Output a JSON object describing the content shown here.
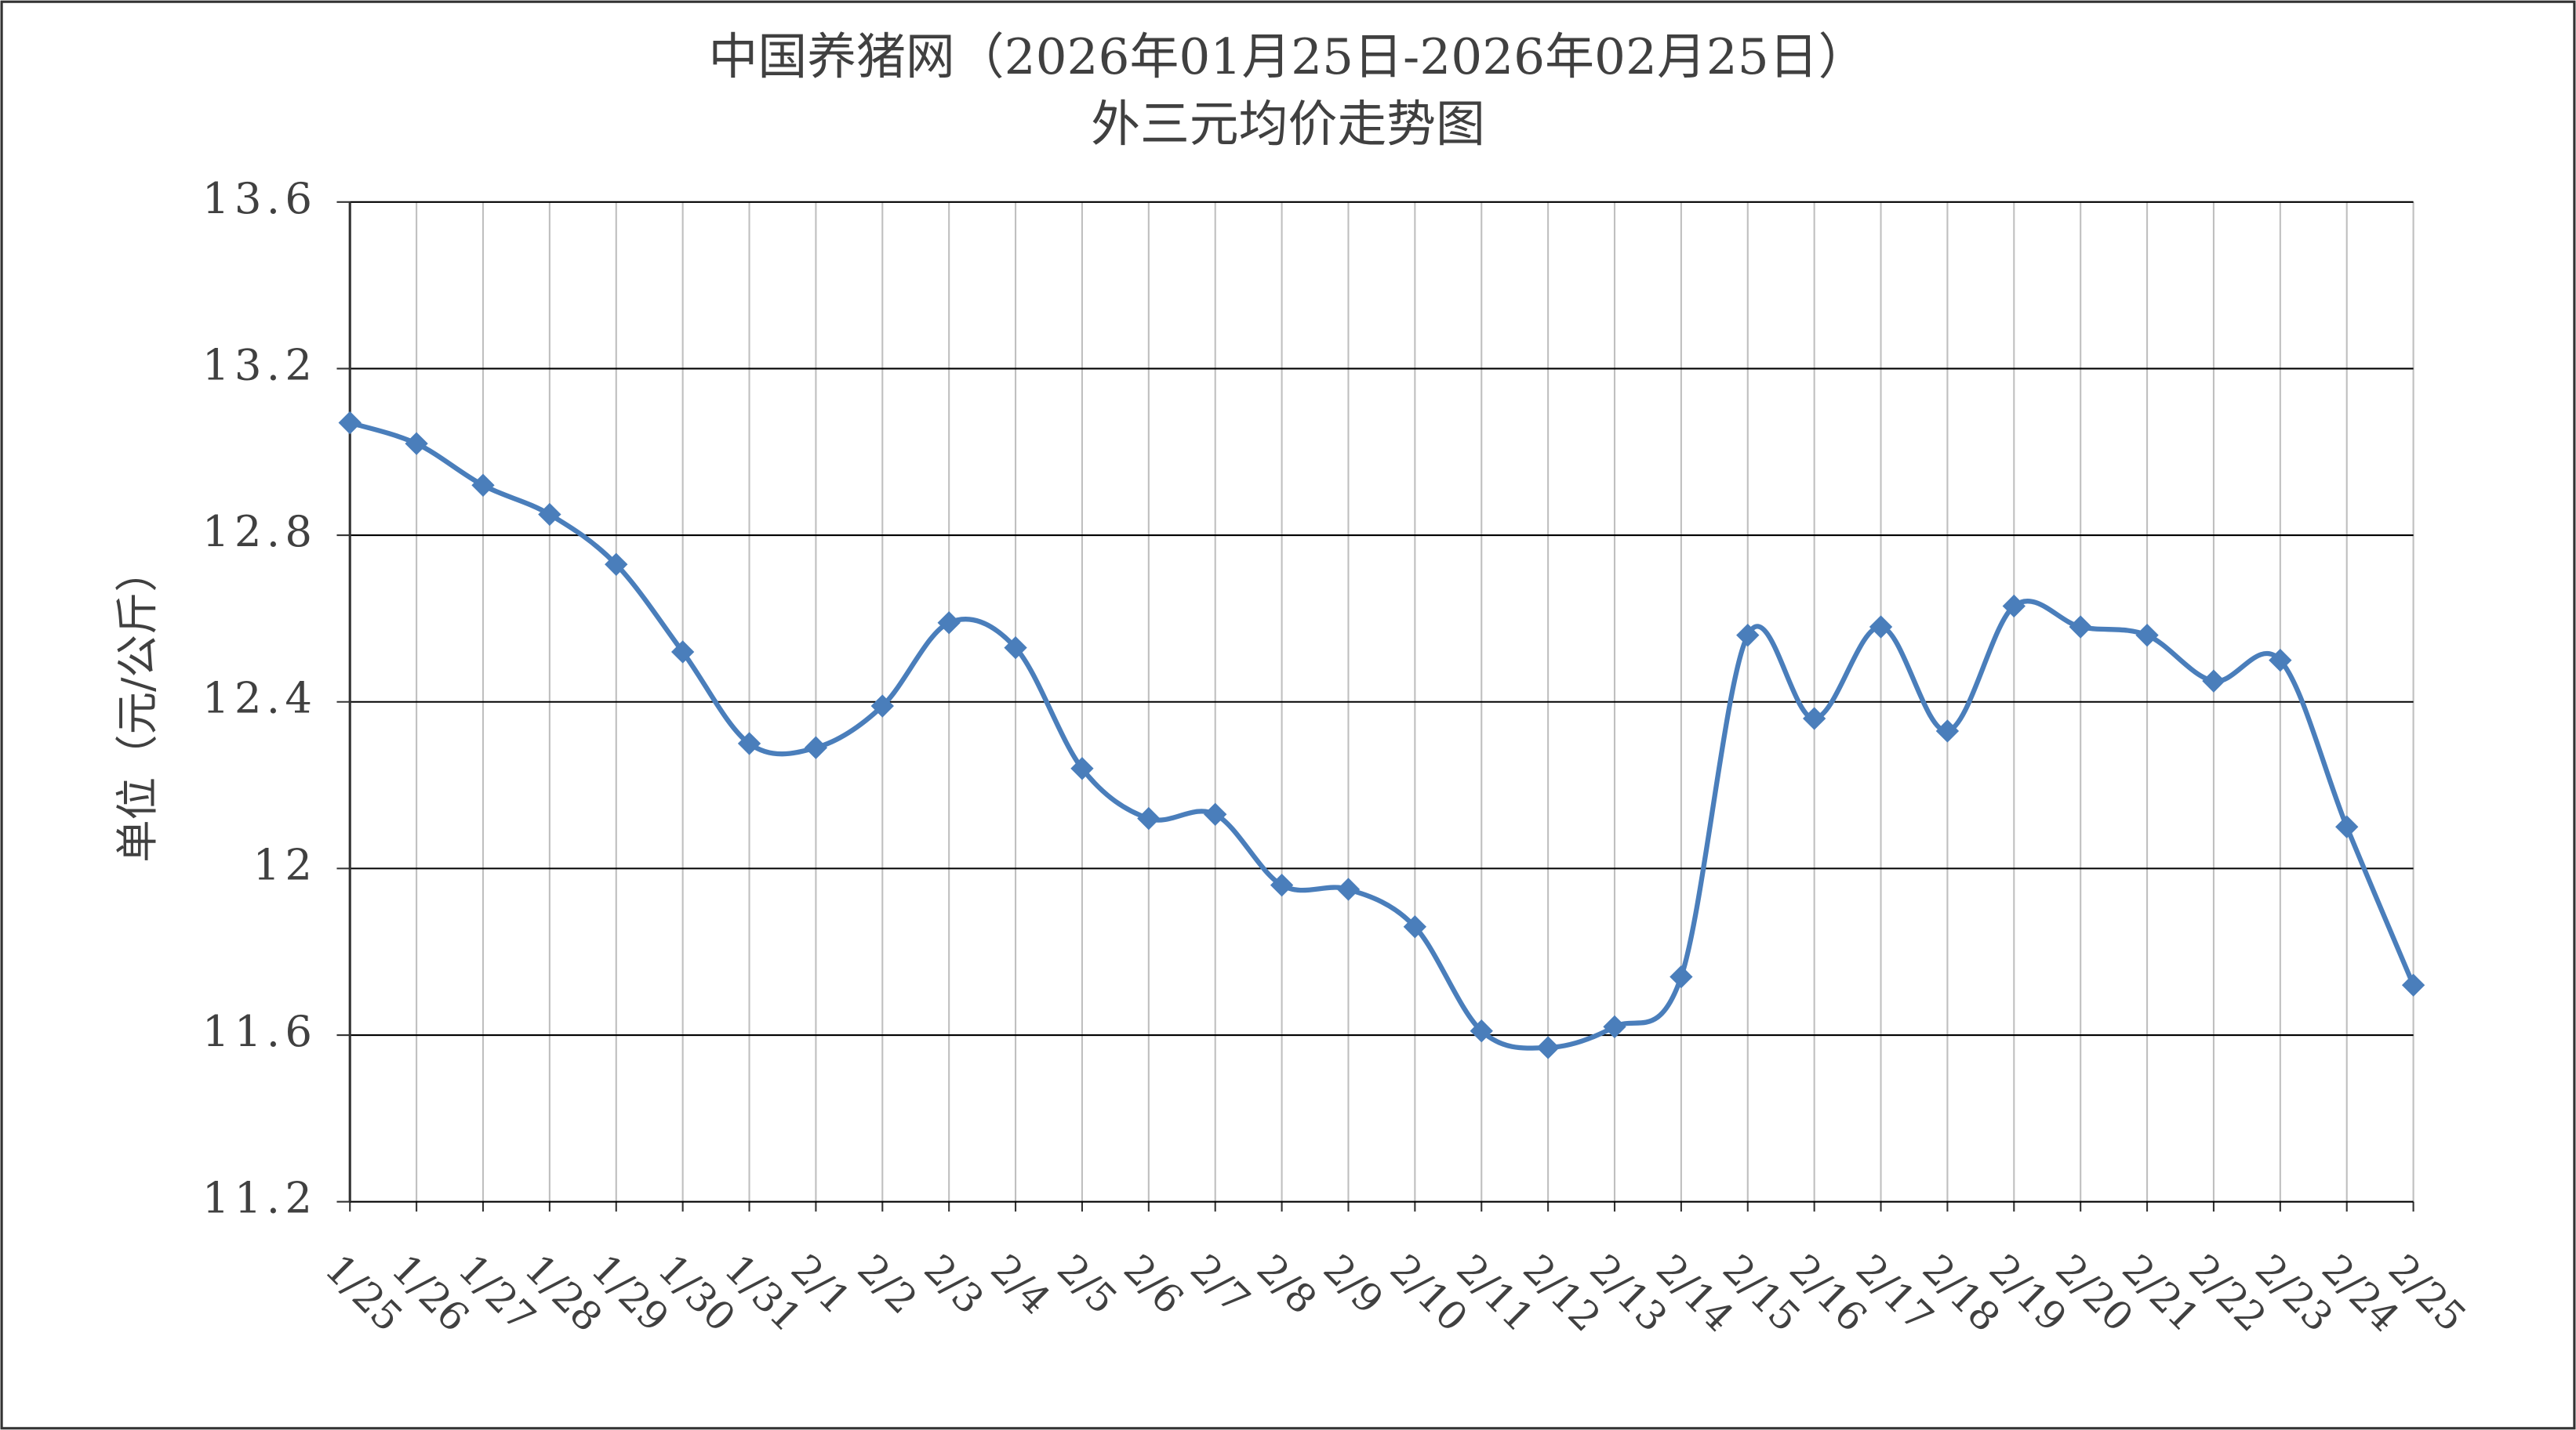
{
  "chart_data": {
    "type": "line",
    "title": "中国养猪网（2026年01月25日-2026年02月25日）",
    "subtitle": "外三元均价走势图",
    "y_label": "单位（元/公斤）",
    "categories": [
      "1/25",
      "1/26",
      "1/27",
      "1/28",
      "1/29",
      "1/30",
      "1/31",
      "2/1",
      "2/2",
      "2/3",
      "2/4",
      "2/5",
      "2/6",
      "2/7",
      "2/8",
      "2/9",
      "2/10",
      "2/11",
      "2/12",
      "2/13",
      "2/14",
      "2/15",
      "2/16",
      "2/17",
      "2/18",
      "2/19",
      "2/20",
      "2/21",
      "2/22",
      "2/23",
      "2/24",
      "2/25"
    ],
    "series": [
      {
        "name": "外三元均价",
        "color": "#4a7ebb",
        "values": [
          13.07,
          13.02,
          12.92,
          12.85,
          12.73,
          12.52,
          12.3,
          12.29,
          12.39,
          12.59,
          12.53,
          12.24,
          12.12,
          12.13,
          11.96,
          11.95,
          11.86,
          11.61,
          11.57,
          11.62,
          11.74,
          12.56,
          12.36,
          12.58,
          12.33,
          12.63,
          12.58,
          12.56,
          12.45,
          12.5,
          12.1,
          11.72
        ]
      }
    ],
    "ylim": [
      11.2,
      13.6
    ],
    "yticks": [
      11.2,
      11.6,
      12,
      12.4,
      12.8,
      13.2,
      13.6
    ],
    "grid": true
  }
}
